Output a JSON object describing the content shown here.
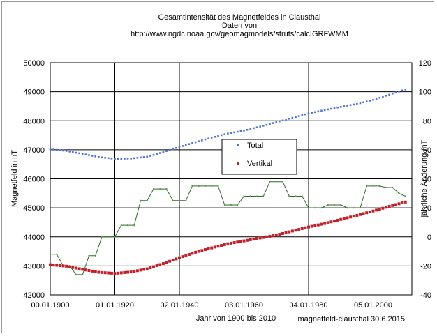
{
  "chart_data": {
    "type": "line",
    "title": "Gesamtintensität des Magnetfeldes in Clausthal",
    "subtitle_lines": [
      "Daten von",
      "http://www.ngdc.noaa.gov/geomagmodels/struts/calcIGRFWMM"
    ],
    "xlabel": "Jahr von 1900 bis 2010",
    "ylabel": "Magnetfeld in nT",
    "y2label": "jährliche Änderung /nT",
    "credit": "magnetfeld-clausthal 30.6.2015",
    "x_ticks": [
      "00.01.1900",
      "01.01.1920",
      "02.01.1940",
      "03.01.1960",
      "04.01.1980",
      "05.01.2000"
    ],
    "x_range": [
      1900,
      2012
    ],
    "ylim": [
      42000,
      50000
    ],
    "y_ticks": [
      42000,
      43000,
      44000,
      45000,
      46000,
      47000,
      48000,
      49000,
      50000
    ],
    "y2lim": [
      -40,
      120
    ],
    "y2_ticks": [
      -40,
      -20,
      0,
      20,
      40,
      60,
      80,
      100,
      120
    ],
    "grid": true,
    "legend_position": "center",
    "series": [
      {
        "name": "Total",
        "axis": "left",
        "style": "dots",
        "color": "#4f74d0",
        "x": [
          1900,
          1905,
          1910,
          1915,
          1920,
          1925,
          1930,
          1935,
          1940,
          1945,
          1950,
          1955,
          1960,
          1965,
          1970,
          1975,
          1980,
          1985,
          1990,
          1995,
          2000,
          2005,
          2010
        ],
        "values": [
          47020,
          46960,
          46860,
          46750,
          46690,
          46700,
          46760,
          46920,
          47100,
          47260,
          47420,
          47560,
          47660,
          47800,
          47950,
          48100,
          48250,
          48370,
          48480,
          48580,
          48720,
          48900,
          49080
        ]
      },
      {
        "name": "Vertikal",
        "axis": "left",
        "style": "squares",
        "color": "#c0202a",
        "x": [
          1900,
          1905,
          1910,
          1915,
          1920,
          1925,
          1930,
          1935,
          1940,
          1945,
          1950,
          1955,
          1960,
          1965,
          1970,
          1975,
          1980,
          1985,
          1990,
          1995,
          2000,
          2005,
          2010
        ],
        "values": [
          43040,
          42990,
          42880,
          42780,
          42740,
          42790,
          42900,
          43080,
          43280,
          43470,
          43620,
          43760,
          43860,
          43960,
          44060,
          44200,
          44340,
          44460,
          44600,
          44740,
          44890,
          45050,
          45200
        ]
      },
      {
        "name": "",
        "axis": "right",
        "style": "step",
        "color": "#4b9a3c",
        "x": [
          1900,
          1902,
          1904,
          1906,
          1908,
          1910,
          1912,
          1914,
          1916,
          1918,
          1920,
          1922,
          1924,
          1926,
          1928,
          1930,
          1932,
          1934,
          1936,
          1938,
          1940,
          1942,
          1944,
          1946,
          1948,
          1950,
          1952,
          1954,
          1956,
          1958,
          1960,
          1962,
          1964,
          1966,
          1968,
          1970,
          1972,
          1974,
          1976,
          1978,
          1980,
          1982,
          1984,
          1986,
          1988,
          1990,
          1992,
          1994,
          1996,
          1998,
          2000,
          2002,
          2004,
          2006,
          2008,
          2010
        ],
        "values": [
          -12,
          -12,
          -20,
          -20,
          -26,
          -26,
          -13,
          -13,
          0,
          0,
          0,
          8,
          8,
          8,
          25,
          25,
          33,
          33,
          33,
          25,
          25,
          25,
          35,
          35,
          35,
          35,
          35,
          22,
          22,
          22,
          28,
          28,
          28,
          28,
          38,
          38,
          38,
          28,
          28,
          28,
          20,
          20,
          20,
          22,
          22,
          22,
          20,
          20,
          20,
          35,
          35,
          35,
          34,
          34,
          30,
          28
        ]
      }
    ]
  }
}
